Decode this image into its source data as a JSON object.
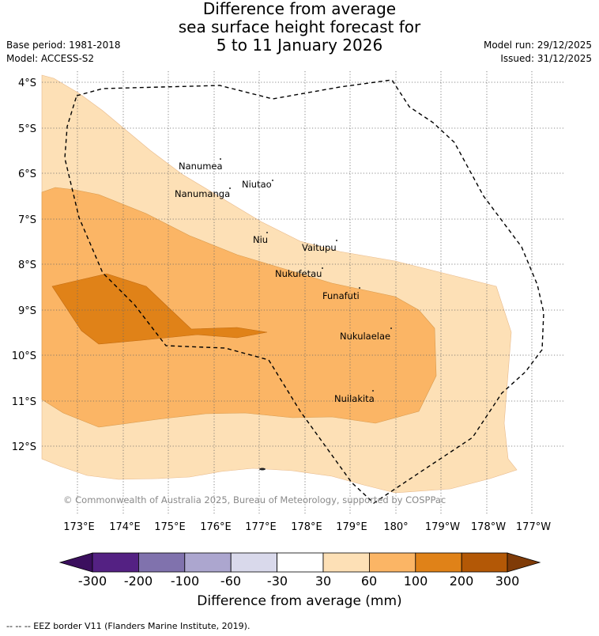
{
  "title": {
    "line1": "Difference from average",
    "line2": "sea surface height forecast for",
    "line3": "5 to 11 January 2026"
  },
  "meta_left": {
    "base_period": "Base period: 1981-2018",
    "model": "Model: ACCESS-S2"
  },
  "meta_right": {
    "model_run": "Model run: 29/12/2025",
    "issued": "Issued: 31/12/2025"
  },
  "map": {
    "lon_labels": [
      "173°E",
      "174°E",
      "175°E",
      "176°E",
      "177°E",
      "178°E",
      "179°E",
      "180°",
      "179°W",
      "178°W",
      "177°W"
    ],
    "lat_labels": [
      "4°S",
      "5°S",
      "6°S",
      "7°S",
      "8°S",
      "9°S",
      "10°S",
      "11°S",
      "12°S"
    ],
    "places": [
      "Nanumea",
      "Nanumanga",
      "Niutao",
      "Niu",
      "Vaitupu",
      "Nukufetau",
      "Funafuti",
      "Nukulaelae",
      "Nuilakita"
    ],
    "credit": "© Commonwealth of Australia 2025, Bureau of Meteorology, supported by COSPPac",
    "fill_colors": {
      "band_30_60": "#fde0b6",
      "band_60_100": "#fbb565",
      "band_100_200": "#e08218"
    }
  },
  "colorbar": {
    "ticks": [
      "-300",
      "-200",
      "-100",
      "-60",
      "-30",
      "30",
      "60",
      "100",
      "200",
      "300"
    ],
    "colors": [
      "#3b0f5e",
      "#542183",
      "#8072ad",
      "#aca6cf",
      "#d9d9eb",
      "#ffffff",
      "#fde0b6",
      "#fbb565",
      "#e08218",
      "#b35806",
      "#7f3b08"
    ],
    "label": "Difference from average (mm)"
  },
  "footer": "--  --  -- EEZ border V11 (Flanders Marine Institute, 2019)."
}
